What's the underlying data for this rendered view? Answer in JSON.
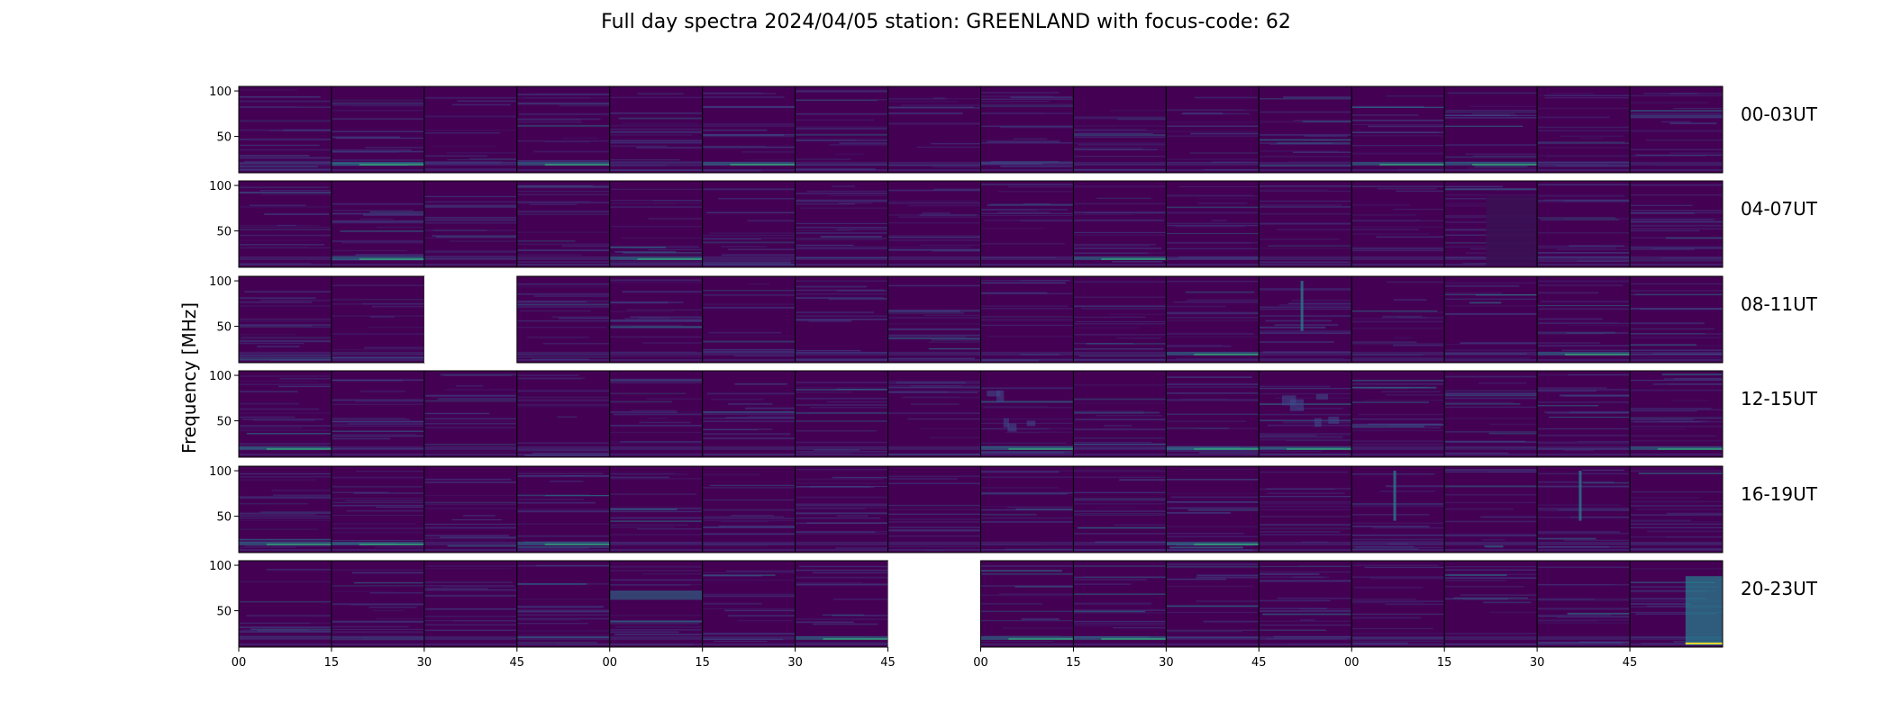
{
  "title": "Full day spectra 2024/04/05 station: GREENLAND with focus-code: 62",
  "colors": {
    "background": "#440154",
    "dark_band": "#3b0f53",
    "mid_line": "#3e4a89",
    "bright_line": "#26828e",
    "hot_line": "#35b779",
    "missing": "#ffffff",
    "text": "#000000"
  },
  "chart_data": {
    "type": "heatmap",
    "title": "Full day spectra 2024/04/05 station: GREENLAND with focus-code: 62",
    "ylabel": "Frequency [MHz]",
    "xlabel": "",
    "ylim": [
      10,
      105
    ],
    "y_ticks": [
      50,
      100
    ],
    "x_tick_labels": [
      "00",
      "15",
      "30",
      "45",
      "00",
      "15",
      "30",
      "45",
      "00",
      "15",
      "30",
      "45",
      "00",
      "15",
      "30",
      "45"
    ],
    "panels_per_row": 16,
    "minutes_per_panel": 15,
    "colormap": "viridis",
    "rows": [
      {
        "label": "00-03UT",
        "missing_panels": [],
        "bright_low_band_panels": [
          1,
          3,
          5,
          12,
          13
        ],
        "bursts": []
      },
      {
        "label": "04-07UT",
        "missing_panels": [],
        "bright_low_band_panels": [
          1,
          4,
          9
        ],
        "bursts": [
          {
            "panel": 13,
            "kind": "dark_block"
          }
        ]
      },
      {
        "label": "08-11UT",
        "missing_panels": [
          2
        ],
        "bright_low_band_panels": [
          10,
          14
        ],
        "bursts": [
          {
            "panel": 11,
            "kind": "vertical_line"
          }
        ]
      },
      {
        "label": "12-15UT",
        "missing_panels": [],
        "bright_low_band_panels": [
          0,
          8,
          10,
          11,
          15
        ],
        "bursts": [
          {
            "panel": 8,
            "kind": "patchy"
          },
          {
            "panel": 11,
            "kind": "patchy"
          }
        ]
      },
      {
        "label": "16-19UT",
        "missing_panels": [],
        "bright_low_band_panels": [
          0,
          1,
          3,
          10
        ],
        "bursts": [
          {
            "panel": 12,
            "kind": "vertical_line"
          },
          {
            "panel": 14,
            "kind": "vertical_line"
          }
        ]
      },
      {
        "label": "20-23UT",
        "missing_panels": [
          7
        ],
        "bright_low_band_panels": [
          6,
          8,
          9
        ],
        "bursts": [
          {
            "panel": 4,
            "kind": "bright_upper_band"
          },
          {
            "panel": 15,
            "kind": "bright_block"
          }
        ]
      }
    ]
  }
}
